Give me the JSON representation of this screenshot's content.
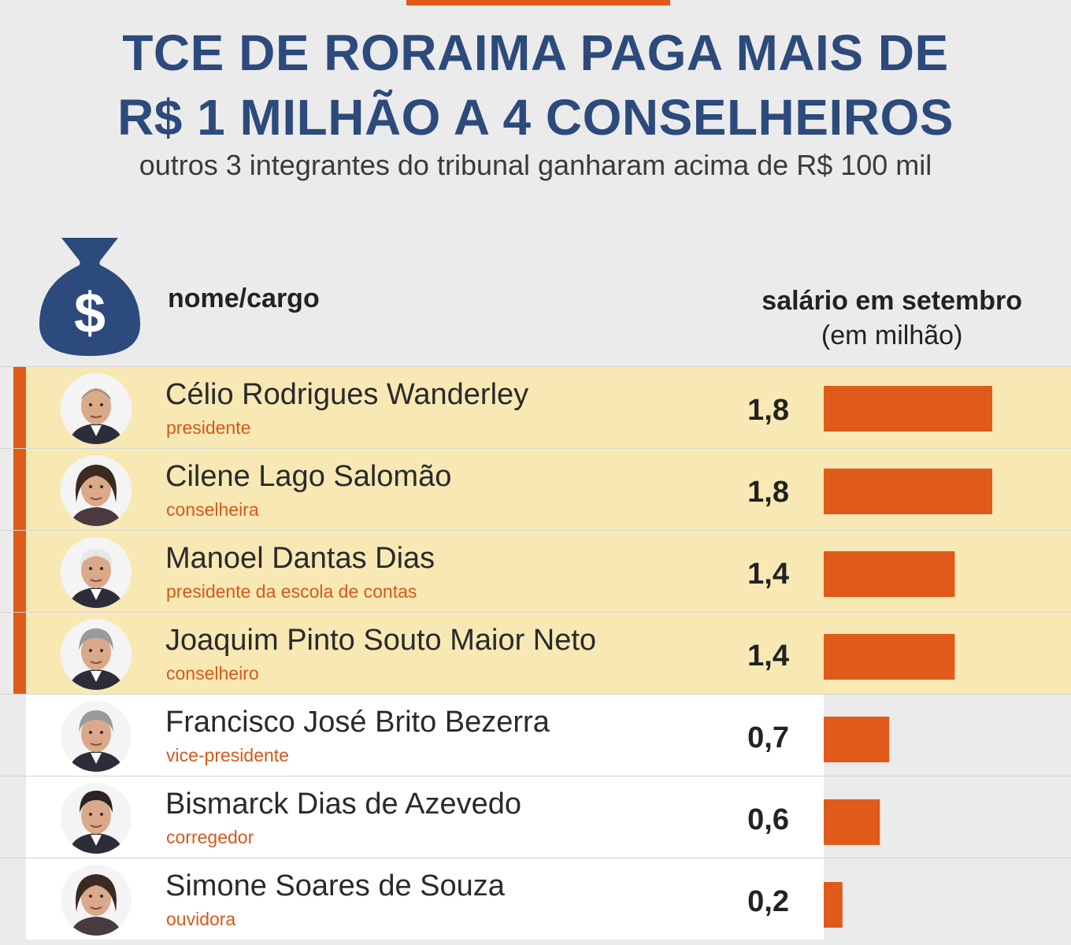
{
  "title_line1": "TCE DE RORAIMA PAGA MAIS DE",
  "title_line2": "R$ 1 MILHÃO A 4 CONSELHEIROS",
  "subtitle": "outros 3 integrantes do tribunal ganharam acima de R$ 100 mil",
  "header": {
    "name_col": "nome/cargo",
    "value_col_line1": "salário em setembro",
    "value_col_line2": "(em milhão)",
    "icon": "money-bag-icon"
  },
  "colors": {
    "title": "#2c4a7c",
    "accent": "#e05a1a",
    "highlight": "#f8e8b4"
  },
  "chart_data": {
    "type": "bar",
    "orientation": "horizontal",
    "xlim": [
      0,
      1.8
    ],
    "categories": [
      "Célio Rodrigues Wanderley",
      "Cilene Lago Salomão",
      "Manoel Dantas Dias",
      "Joaquim Pinto Souto Maior Neto",
      "Francisco José Brito Bezerra",
      "Bismarck Dias de Azevedo",
      "Simone Soares de Souza"
    ],
    "rows": [
      {
        "name": "Célio Rodrigues Wanderley",
        "role": "presidente",
        "value": 1.8,
        "label": "1,8",
        "highlight": true,
        "avatar": "man-bald"
      },
      {
        "name": "Cilene Lago Salomão",
        "role": "conselheira",
        "value": 1.8,
        "label": "1,8",
        "highlight": true,
        "avatar": "woman-dark-hair"
      },
      {
        "name": "Manoel Dantas Dias",
        "role": "presidente da escola de contas",
        "value": 1.4,
        "label": "1,4",
        "highlight": true,
        "avatar": "man-white-hair"
      },
      {
        "name": "Joaquim Pinto Souto Maior Neto",
        "role": "conselheiro",
        "value": 1.4,
        "label": "1,4",
        "highlight": true,
        "avatar": "man-gray-hair"
      },
      {
        "name": "Francisco José Brito Bezerra",
        "role": "vice-presidente",
        "value": 0.7,
        "label": "0,7",
        "highlight": false,
        "avatar": "man-gray-hair"
      },
      {
        "name": "Bismarck Dias de Azevedo",
        "role": "corregedor",
        "value": 0.6,
        "label": "0,6",
        "highlight": false,
        "avatar": "man-dark-hair"
      },
      {
        "name": "Simone Soares de Souza",
        "role": "ouvidora",
        "value": 0.2,
        "label": "0,2",
        "highlight": false,
        "avatar": "woman-dark-hair"
      }
    ]
  }
}
